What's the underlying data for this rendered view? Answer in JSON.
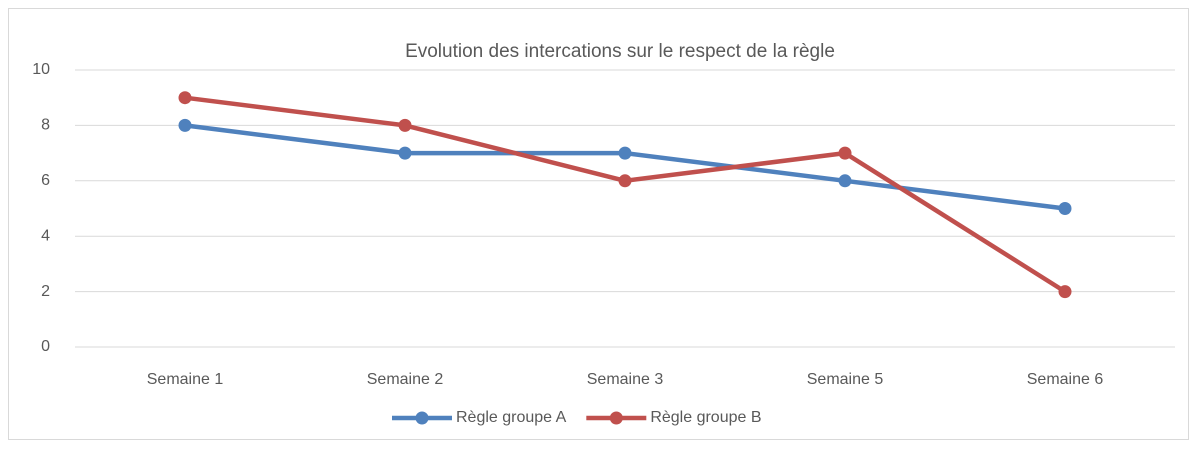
{
  "chart_data": {
    "type": "line",
    "title": "Evolution des intercations sur le respect de la règle",
    "categories": [
      "Semaine 1",
      "Semaine 2",
      "Semaine 3",
      "Semaine 5",
      "Semaine 6"
    ],
    "series": [
      {
        "name": "Règle groupe A",
        "color": "#4f81bd",
        "values": [
          8,
          7,
          7,
          6,
          5
        ]
      },
      {
        "name": "Règle groupe B",
        "color": "#c0504d",
        "values": [
          9,
          8,
          6,
          7,
          2
        ]
      }
    ],
    "ylim": [
      0,
      10
    ],
    "yticks": [
      0,
      2,
      4,
      6,
      8,
      10
    ],
    "grid": true,
    "legend": "bottom"
  }
}
